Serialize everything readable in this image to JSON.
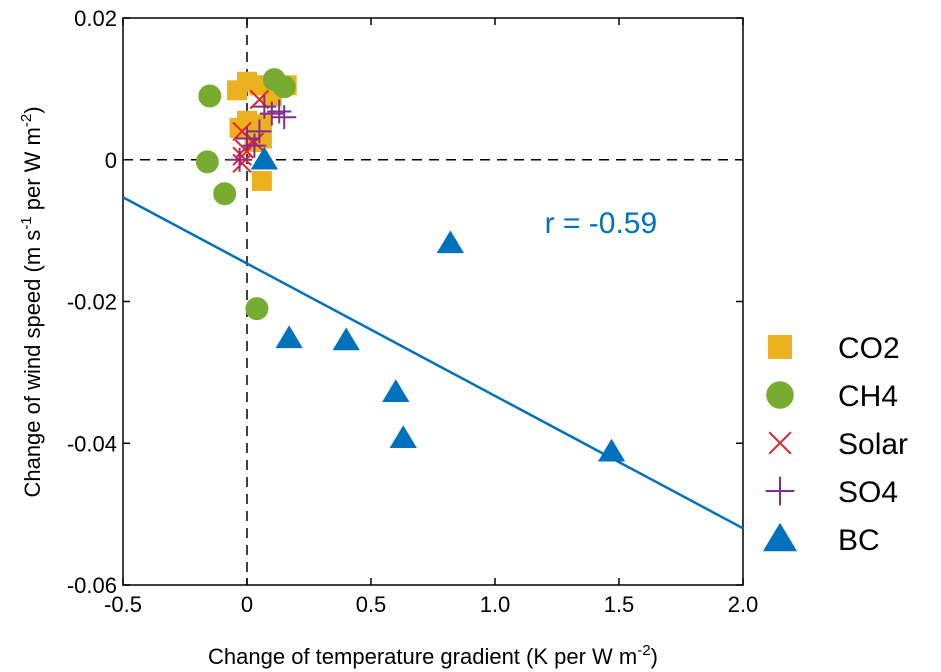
{
  "chart_data": {
    "type": "scatter",
    "xlabel": {
      "pre": "Change of temperature gradient (K per W m",
      "sup": "-2",
      "post": ")"
    },
    "ylabel": {
      "p1": "Change of wind speed (m s",
      "s1": "-1",
      "p2": " per W m",
      "s2": "-2",
      "p3": ")"
    },
    "xlim": [
      -0.5,
      2.0
    ],
    "ylim": [
      -0.06,
      0.02
    ],
    "xticks": [
      -0.5,
      0,
      0.5,
      1.0,
      1.5,
      2.0
    ],
    "xtick_labels": [
      "-0.5",
      "0",
      "0.5",
      "1.0",
      "1.5",
      "2.0"
    ],
    "yticks": [
      -0.06,
      -0.04,
      -0.02,
      0,
      0.02
    ],
    "ytick_labels": [
      "-0.06",
      "-0.04",
      "-0.02",
      "0",
      "0.02"
    ],
    "grid": false,
    "legend_position": "outside-right",
    "reference_lines": {
      "x": 0,
      "y": 0,
      "style": "dashed"
    },
    "series": [
      {
        "name": "CO2",
        "marker": "square",
        "color": "#EDB120",
        "points": [
          [
            0.0,
            0.011
          ],
          [
            0.05,
            0.0105
          ],
          [
            0.16,
            0.0105
          ],
          [
            -0.04,
            0.0098
          ],
          [
            0.1,
            0.009
          ],
          [
            0.0,
            0.0055
          ],
          [
            0.06,
            0.005
          ],
          [
            -0.03,
            0.0045
          ],
          [
            0.03,
            0.0025
          ],
          [
            0.06,
            0.003
          ],
          [
            0.06,
            -0.003
          ]
        ]
      },
      {
        "name": "CH4",
        "marker": "circle",
        "color": "#77AC30",
        "points": [
          [
            -0.15,
            0.009
          ],
          [
            0.11,
            0.0113
          ],
          [
            0.15,
            0.0103
          ],
          [
            -0.16,
            -0.0003
          ],
          [
            -0.09,
            -0.0048
          ],
          [
            0.04,
            -0.021
          ]
        ]
      },
      {
        "name": "Solar",
        "marker": "x",
        "color": "#E8202A",
        "points": [
          [
            0.05,
            0.0085
          ],
          [
            -0.02,
            0.004
          ],
          [
            0.03,
            0.0025
          ],
          [
            -0.02,
            0.0005
          ],
          [
            -0.01,
            0.0015
          ],
          [
            -0.02,
            -0.0005
          ]
        ]
      },
      {
        "name": "SO4",
        "marker": "plus",
        "color": "#7E2F8E",
        "points": [
          [
            0.07,
            0.0075
          ],
          [
            0.1,
            0.0065
          ],
          [
            0.13,
            0.0068
          ],
          [
            0.15,
            0.006
          ],
          [
            0.05,
            0.004
          ],
          [
            0.0,
            0.003
          ],
          [
            -0.03,
            0.0
          ],
          [
            0.03,
            0.002
          ]
        ]
      },
      {
        "name": "BC",
        "marker": "triangle",
        "color": "#0072BD",
        "points": [
          [
            0.07,
            0.0
          ],
          [
            0.82,
            -0.0118
          ],
          [
            0.17,
            -0.0252
          ],
          [
            0.4,
            -0.0255
          ],
          [
            0.6,
            -0.0328
          ],
          [
            0.63,
            -0.0393
          ],
          [
            1.47,
            -0.0412
          ]
        ]
      }
    ],
    "regression": {
      "color": "#0072BD",
      "x": [
        -0.5,
        2.0
      ],
      "y": [
        -0.0053,
        -0.052
      ]
    },
    "annotation": {
      "text": "r = -0.59",
      "color": "#0072BD",
      "x": 1.2,
      "y": -0.0103
    }
  }
}
